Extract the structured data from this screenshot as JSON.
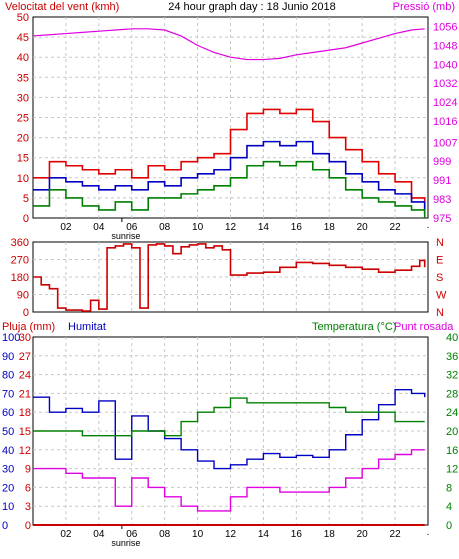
{
  "title": "24 hour graph day : 18 Junio 2018",
  "top_left_label": "Velocitat del vent (kmh)",
  "top_right_label": "Pressió (mb)",
  "bottom_labels": {
    "pluja": "Pluja (mm)",
    "humitat": "Humitat",
    "temperatura": "Temperatura (°C)",
    "punt_rosada": "Punt rosada"
  },
  "x_axis": {
    "tick_labels": [
      "02",
      "04",
      "06",
      "08",
      "10",
      "12",
      "14",
      "16",
      "18",
      "20",
      "22"
    ],
    "sunrise_label": "sunrise",
    "sunrise_hour": 5.4
  },
  "colors": {
    "wind_gust": "#e00000",
    "wind_avg": "#0000c0",
    "wind_min": "#008000",
    "pressure": "#e000e0",
    "direction": "#cc0000",
    "humidity": "#0000c0",
    "temperature": "#008000",
    "dewpoint": "#e000e0",
    "rain": "#cc0000",
    "grid": "#c8c8c8",
    "label_red": "#cc0000",
    "label_blue": "#0000c0",
    "label_green": "#008000",
    "label_magenta": "#e000e0"
  },
  "chart_data": [
    {
      "type": "line",
      "name": "wind",
      "x_unit": "hour",
      "y_left": {
        "ticks": [
          0,
          5,
          10,
          15,
          20,
          25,
          30,
          35,
          40,
          45,
          50
        ],
        "range": [
          0,
          50
        ]
      },
      "y_right": {
        "ticks": [
          975,
          983,
          991,
          999,
          1007,
          1016,
          1024,
          1032,
          1040,
          1048,
          1056
        ],
        "range": [
          975,
          1060
        ]
      },
      "x": [
        0,
        1,
        2,
        3,
        4,
        5,
        6,
        7,
        8,
        9,
        10,
        11,
        12,
        13,
        14,
        15,
        16,
        17,
        18,
        19,
        20,
        21,
        22,
        23,
        23.8
      ],
      "series": [
        {
          "key": "wind_gust",
          "values": [
            10,
            14,
            13,
            12,
            11,
            12,
            10,
            13,
            12,
            14,
            15,
            16,
            22,
            26,
            27,
            26,
            27,
            24,
            20,
            17,
            14,
            11,
            9,
            5,
            2
          ]
        },
        {
          "key": "wind_avg",
          "values": [
            7,
            10,
            9,
            8,
            7,
            8,
            7,
            9,
            8,
            10,
            11,
            12,
            15,
            18,
            19,
            18,
            19,
            16,
            14,
            11,
            9,
            7,
            6,
            4,
            1
          ]
        },
        {
          "key": "wind_min",
          "values": [
            3,
            7,
            5,
            3,
            2,
            4,
            2,
            5,
            5,
            6,
            7,
            8,
            10,
            13,
            14,
            13,
            14,
            12,
            10,
            7,
            5,
            4,
            3,
            2,
            0
          ]
        },
        {
          "key": "pressure",
          "axis": "right",
          "values": [
            1052,
            1052.5,
            1053,
            1053.5,
            1054,
            1054.5,
            1055,
            1055,
            1054.5,
            1052,
            1048,
            1045,
            1043,
            1042,
            1042,
            1042.5,
            1044,
            1045,
            1046,
            1047,
            1049,
            1051,
            1053,
            1054.5,
            1055
          ]
        }
      ]
    },
    {
      "type": "line",
      "name": "wind_direction",
      "x_unit": "hour",
      "y_left": {
        "ticks": [
          0,
          90,
          180,
          270,
          360
        ],
        "range": [
          0,
          360
        ]
      },
      "y_right": {
        "ticks": [
          "N",
          "W",
          "S",
          "E",
          "N"
        ]
      },
      "x": [
        0,
        0.5,
        1,
        1.5,
        2,
        3,
        3.5,
        4,
        4.5,
        5,
        5.5,
        6,
        6.5,
        7,
        7.5,
        8,
        8.5,
        9,
        9.5,
        10,
        10.5,
        11,
        11.5,
        12,
        13,
        14,
        15,
        16,
        17,
        18,
        19,
        20,
        21,
        22,
        23,
        23.5,
        23.8
      ],
      "series": [
        {
          "key": "direction",
          "values": [
            180,
            140,
            120,
            20,
            10,
            5,
            60,
            15,
            330,
            340,
            350,
            330,
            20,
            345,
            350,
            340,
            300,
            335,
            345,
            350,
            330,
            340,
            320,
            190,
            200,
            205,
            230,
            255,
            250,
            240,
            230,
            220,
            205,
            215,
            235,
            265,
            230
          ]
        }
      ]
    },
    {
      "type": "line",
      "name": "humidity_temperature",
      "x_unit": "hour",
      "y_left_rain": {
        "ticks": [
          0,
          3,
          6,
          9,
          12,
          15,
          18,
          21,
          24,
          27,
          30
        ],
        "range": [
          0,
          30
        ]
      },
      "y_left_humidity": {
        "ticks": [
          0,
          10,
          20,
          30,
          40,
          50,
          60,
          70,
          80,
          90,
          100
        ],
        "range": [
          0,
          100
        ]
      },
      "y_right": {
        "ticks": [
          0,
          4,
          8,
          12,
          16,
          20,
          24,
          28,
          32,
          36,
          40
        ],
        "range": [
          0,
          40
        ]
      },
      "x": [
        0,
        1,
        2,
        3,
        4,
        5,
        6,
        7,
        8,
        9,
        10,
        11,
        12,
        13,
        14,
        15,
        16,
        17,
        18,
        19,
        20,
        21,
        22,
        23,
        23.8
      ],
      "series": [
        {
          "key": "humidity",
          "axis": "humidity",
          "values": [
            68,
            60,
            62,
            60,
            66,
            35,
            58,
            50,
            46,
            40,
            34,
            30,
            32,
            35,
            38,
            36,
            37,
            36,
            40,
            48,
            56,
            64,
            72,
            70,
            68
          ]
        },
        {
          "key": "temperature",
          "axis": "right",
          "values": [
            20,
            20,
            20,
            19,
            19,
            19,
            20,
            20,
            19,
            22,
            24,
            25,
            27,
            26,
            26,
            26,
            26,
            26,
            25,
            24,
            24,
            24,
            22,
            22,
            22
          ]
        },
        {
          "key": "dewpoint",
          "axis": "right",
          "values": [
            12,
            12,
            11,
            10,
            10,
            4,
            10,
            8,
            6,
            4,
            3,
            3,
            6,
            8,
            8,
            7,
            7,
            7,
            8,
            10,
            12,
            14,
            15,
            16,
            16
          ]
        },
        {
          "key": "rain",
          "axis": "rain",
          "values": [
            0,
            0,
            0,
            0,
            0,
            0,
            0,
            0,
            0,
            0,
            0,
            0,
            0,
            0,
            0,
            0,
            0,
            0,
            0,
            0,
            0,
            0,
            0,
            0,
            0
          ]
        }
      ]
    }
  ]
}
